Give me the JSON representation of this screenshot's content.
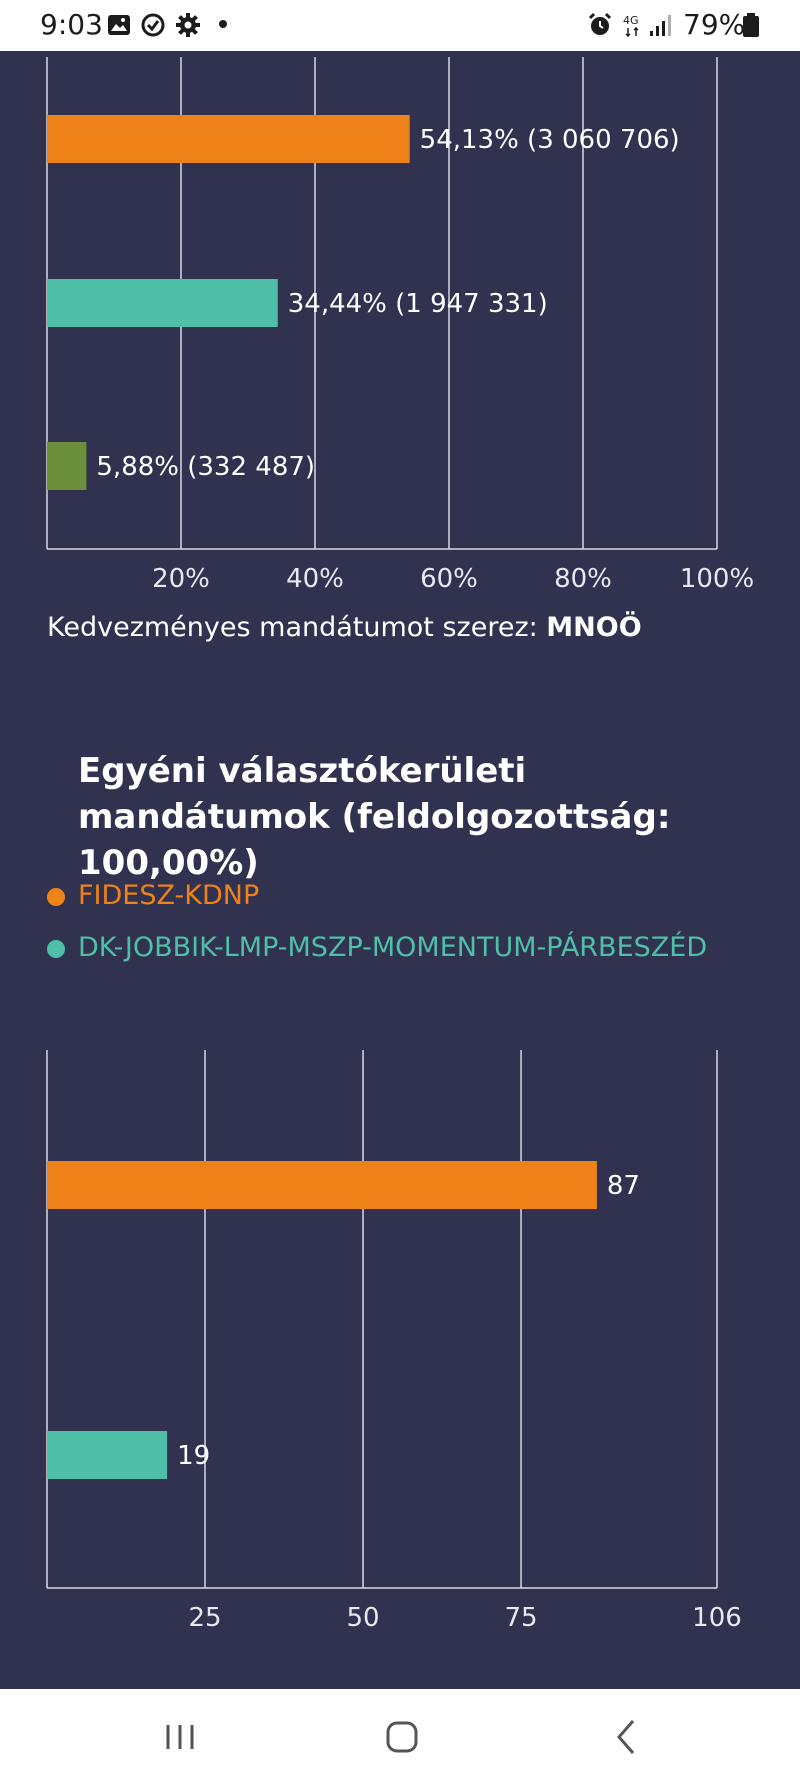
{
  "status_bar": {
    "time": "9:03",
    "battery": "79%",
    "icons": [
      "image-icon",
      "sync-icon",
      "gear-icon",
      "notification-dot-icon",
      "alarm-icon",
      "4g-icon",
      "signal-icon",
      "battery-icon"
    ]
  },
  "charts": {
    "votes": {
      "axis_ticks": [
        "20%",
        "40%",
        "60%",
        "80%",
        "100%"
      ],
      "colors": [
        "#ee8219",
        "#4fbfa8",
        "#6b8f3a"
      ]
    },
    "seats": {
      "axis_ticks": [
        "25",
        "50",
        "75",
        "106"
      ],
      "colors": [
        "#ee8219",
        "#4fbfa8"
      ]
    }
  },
  "chart_data": [
    {
      "type": "bar",
      "orientation": "horizontal",
      "categories": [
        "",
        "",
        ""
      ],
      "values": [
        54.13,
        34.44,
        5.88
      ],
      "data_labels": [
        "54,13% (3 060 706)",
        "34,44% (1 947 331)",
        "5,88% (332 487)"
      ],
      "xlim": [
        0,
        100
      ],
      "xticks": [
        "20%",
        "40%",
        "60%",
        "80%",
        "100%"
      ],
      "grid": true,
      "title": "",
      "xlabel": "",
      "ylabel": ""
    },
    {
      "type": "bar",
      "orientation": "horizontal",
      "categories": [
        "FIDESZ-KDNP",
        "DK-JOBBIK-LMP-MSZP-MOMENTUM-PÁRBESZÉD"
      ],
      "values": [
        87,
        19
      ],
      "data_labels": [
        "87",
        "19"
      ],
      "xlim": [
        0,
        106
      ],
      "xticks": [
        "25",
        "50",
        "75",
        "106"
      ],
      "grid": true,
      "title": "Egyéni választókerületi mandátumok (feldolgozottság: 100,00%)",
      "xlabel": "",
      "ylabel": ""
    }
  ],
  "note": {
    "text": "Kedvezményes mandátumot szerez: ",
    "party": "MNOÖ"
  },
  "section": {
    "title": "Egyéni választókerületi mandátumok (feldolgozottság: 100,00%)"
  },
  "legend": [
    {
      "label": "FIDESZ-KDNP",
      "color": "#ee8219"
    },
    {
      "label": "DK-JOBBIK-LMP-MSZP-MOMENTUM-PÁRBESZÉD",
      "color": "#4fbfa8"
    }
  ],
  "nav_bar": {
    "icons": [
      "recent-apps-icon",
      "home-icon",
      "back-icon"
    ]
  }
}
